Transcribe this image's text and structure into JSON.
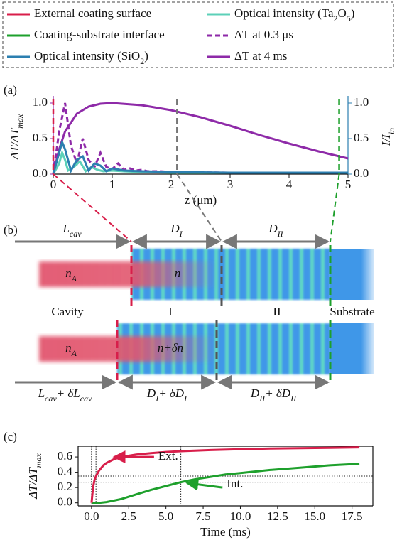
{
  "legend": {
    "border": "dashed"
  },
  "chart_data": [
    {
      "type": "line",
      "label": "(a)",
      "xlabel": "z (μm)",
      "ylabel": [
        "ΔT/ΔT",
        "max"
      ],
      "y2label": [
        "I/I",
        "in"
      ],
      "xlim": [
        0,
        5
      ],
      "xticks": [
        0,
        1,
        2,
        3,
        4,
        5
      ],
      "ylim": [
        0,
        1.05
      ],
      "yticks": [
        {
          "value": 0,
          "label": "0.0"
        },
        0.5,
        {
          "value": 1,
          "label": "1.0"
        }
      ],
      "y2lim": [
        0,
        1.05
      ],
      "y2ticks": [
        {
          "value": 0,
          "label": "0.0"
        },
        0.5,
        {
          "value": 1,
          "label": "1.0"
        }
      ],
      "vlines": [
        {
          "name": [
            "External coating surface"
          ],
          "color": "#d81e4a",
          "x": 0
        },
        {
          "name": [
            "Coating-substrate interface"
          ],
          "color": "#1ea02c",
          "x": 4.85
        },
        {
          "color": "#777777",
          "x": 2.1
        }
      ],
      "series": [
        {
          "name": [
            "Optical intensity (SiO",
            "2",
            ")"
          ],
          "color": "#2c7fb0",
          "axis": "y2",
          "x": [
            0,
            0.1,
            0.15,
            0.2,
            0.3,
            0.4,
            0.5,
            0.6,
            0.7,
            0.8,
            0.9,
            1.0,
            1.2,
            1.5,
            2,
            3,
            4,
            5
          ],
          "values": [
            0,
            0.3,
            0.45,
            0.35,
            0.05,
            0.2,
            0.25,
            0.05,
            0.15,
            0.12,
            0.04,
            0.08,
            0.05,
            0.04,
            0.03,
            0.02,
            0.02,
            0.02
          ]
        },
        {
          "name": [
            "Optical intensity (Ta",
            "2",
            "O",
            "5",
            ")"
          ],
          "color": "#5cd0b8",
          "axis": "y2",
          "x": [
            0,
            0.1,
            0.15,
            0.2,
            0.25,
            0.35,
            0.45,
            0.55,
            0.65,
            0.75,
            0.85,
            1.0,
            1.2,
            1.5,
            2,
            3,
            4,
            5
          ],
          "values": [
            0,
            0.15,
            0.3,
            0.2,
            0.05,
            0.1,
            0.18,
            0.04,
            0.1,
            0.06,
            0.04,
            0.05,
            0.04,
            0.03,
            0.02,
            0.02,
            0.02,
            0.02
          ]
        },
        {
          "name": [
            "ΔT at 0.3 μs"
          ],
          "color": "#8e2aa8",
          "dashed": true,
          "x": [
            0,
            0.1,
            0.2,
            0.3,
            0.4,
            0.5,
            0.6,
            0.7,
            0.8,
            0.9,
            1.0,
            1.1,
            1.2,
            1.3,
            1.4,
            1.5,
            1.6,
            1.8,
            2.0,
            3,
            4,
            5
          ],
          "values": [
            0,
            0.6,
            1.0,
            0.4,
            0.15,
            0.5,
            0.2,
            0.1,
            0.3,
            0.1,
            0.07,
            0.15,
            0.06,
            0.08,
            0.05,
            0.06,
            0.04,
            0.04,
            0.03,
            0.02,
            0.02,
            0.02
          ]
        },
        {
          "name": [
            "ΔT at 4 ms"
          ],
          "color": "#8e2aa8",
          "x": [
            0,
            0.1,
            0.2,
            0.4,
            0.6,
            0.8,
            1.0,
            1.5,
            2,
            2.5,
            3,
            3.5,
            4,
            4.5,
            5
          ],
          "values": [
            0,
            0.35,
            0.6,
            0.85,
            0.95,
            0.99,
            1.0,
            0.97,
            0.9,
            0.8,
            0.68,
            0.55,
            0.43,
            0.32,
            0.22
          ]
        }
      ]
    },
    {
      "type": "line",
      "label": "(c)",
      "xlabel": "Time (ms)",
      "ylabel": [
        "ΔT/ΔT",
        "max"
      ],
      "xlim": [
        -0.9,
        18.9
      ],
      "xticks": [
        {
          "value": 0,
          "label": "0.0"
        },
        2.5,
        {
          "value": 5,
          "label": "5.0"
        },
        7.5,
        {
          "value": 10,
          "label": "10.0"
        },
        12.5,
        {
          "value": 15,
          "label": "15.0"
        },
        17.5
      ],
      "ylim": [
        -0.04,
        0.74
      ],
      "yticks": [
        {
          "value": 0,
          "label": "0.0"
        },
        0.2,
        0.4,
        0.6
      ],
      "refx": [
        0,
        0.3,
        6
      ],
      "refy": [
        0.35,
        0.27
      ],
      "series": [
        {
          "name": "Ext.",
          "color": "#d81e4a",
          "x": [
            0,
            0.1,
            0.2,
            0.3,
            0.5,
            0.8,
            1,
            1.5,
            2,
            3,
            4,
            5,
            6,
            8,
            10,
            12,
            14,
            16,
            18
          ],
          "values": [
            0,
            0.2,
            0.3,
            0.35,
            0.42,
            0.49,
            0.52,
            0.57,
            0.6,
            0.63,
            0.65,
            0.665,
            0.675,
            0.69,
            0.7,
            0.71,
            0.715,
            0.72,
            0.725
          ]
        },
        {
          "name": "Int.",
          "color": "#1ea02c",
          "x": [
            0,
            0.5,
            1,
            1.5,
            2,
            3,
            4,
            5,
            6,
            7,
            8,
            9,
            10,
            12,
            14,
            16,
            18
          ],
          "values": [
            0,
            0,
            0.01,
            0.03,
            0.05,
            0.11,
            0.17,
            0.22,
            0.27,
            0.31,
            0.34,
            0.37,
            0.39,
            0.43,
            0.46,
            0.49,
            0.51
          ]
        }
      ]
    }
  ],
  "diagram": {
    "label": "(b)",
    "top_dims": [
      [
        "L",
        "cav"
      ],
      [
        "D",
        "I"
      ],
      [
        "D",
        "II"
      ]
    ],
    "top_n": [
      [
        "n",
        "A"
      ],
      [
        "n"
      ]
    ],
    "regions": [
      "Cavity",
      "I",
      "II",
      "Substrate"
    ],
    "bottom_n": [
      [
        "n",
        "A"
      ],
      [
        "n+δn"
      ]
    ],
    "bottom_dims": [
      [
        "L",
        "cav",
        "+ δL",
        "cav"
      ],
      [
        "D",
        "I",
        "+ δD",
        "I"
      ],
      [
        "D",
        "II",
        "+ δD",
        "II"
      ]
    ]
  }
}
